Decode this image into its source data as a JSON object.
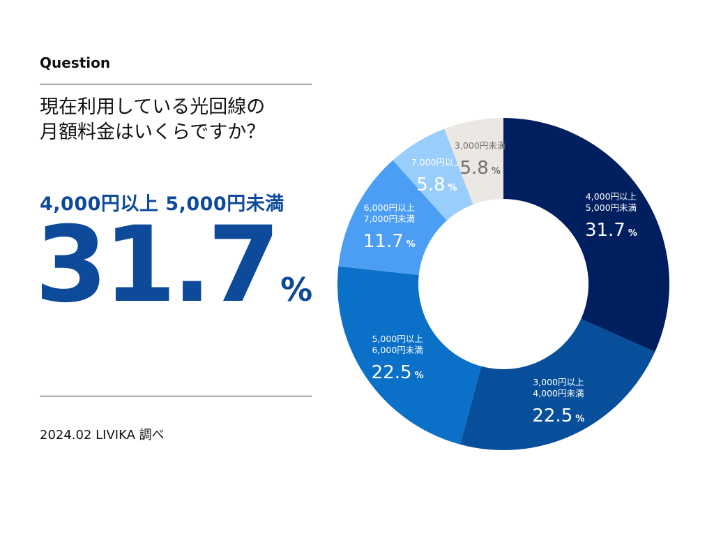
{
  "header": {
    "label": "Question"
  },
  "question": {
    "line1": "現在利用している光回線の",
    "line2": "月額料金はいくらですか？"
  },
  "highlight": {
    "range": "4,000円以上 5,000円未満",
    "value": "31.7",
    "unit": "%"
  },
  "source": "2024.02 LIVIKA 調べ",
  "chart_data": {
    "type": "pie",
    "donut": true,
    "unit": "%",
    "slices": [
      {
        "label": [
          "4,000円以上",
          "5,000円未満"
        ],
        "value": 31.7,
        "color": "#001f5e",
        "text_color": "#ffffff"
      },
      {
        "label": [
          "3,000円以上",
          "4,000円未満"
        ],
        "value": 22.5,
        "color": "#074f9b",
        "text_color": "#ffffff"
      },
      {
        "label": [
          "5,000円以上",
          "6,000円未満"
        ],
        "value": 22.5,
        "color": "#0a70c8",
        "text_color": "#ffffff"
      },
      {
        "label": [
          "6,000円以上",
          "7,000円未満"
        ],
        "value": 11.7,
        "color": "#4c9ef4",
        "text_color": "#ffffff"
      },
      {
        "label": [
          "7,000円以上"
        ],
        "value": 5.8,
        "color": "#99cdfb",
        "text_color": "#ffffff"
      },
      {
        "label": [
          "3,000円未満"
        ],
        "value": 5.8,
        "color": "#ebe7e3",
        "text_color": "#707070"
      }
    ]
  }
}
